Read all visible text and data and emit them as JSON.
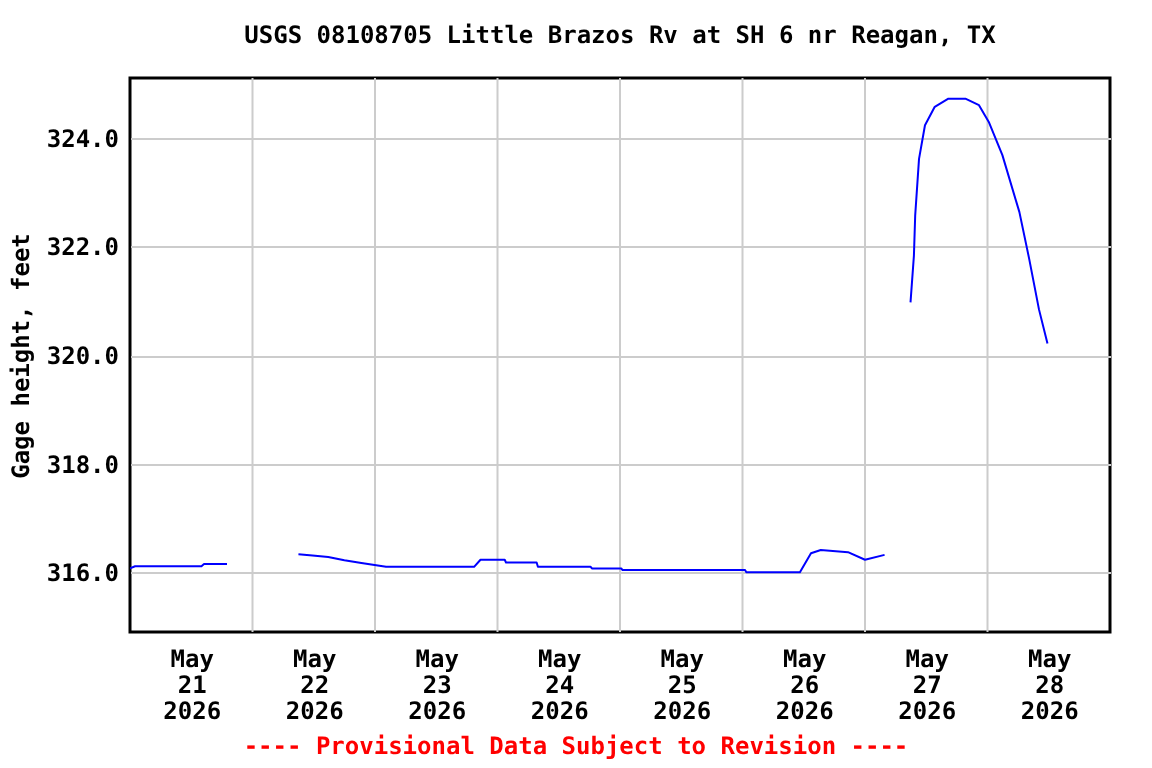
{
  "chart_data": {
    "type": "line",
    "title": "USGS 08108705 Little Brazos Rv at SH 6 nr Reagan, TX",
    "ylabel": "Gage height, feet",
    "annotations": [
      "---- Provisional Data Subject to Revision ----"
    ],
    "xlim": [
      "2026-05-21T00:00",
      "2026-05-29T00:00"
    ],
    "xticks": [
      {
        "value": "2026-05-21T12:00",
        "label": "May\n21\n2026"
      },
      {
        "value": "2026-05-22T12:00",
        "label": "May\n22\n2026"
      },
      {
        "value": "2026-05-23T12:00",
        "label": "May\n23\n2026"
      },
      {
        "value": "2026-05-24T12:00",
        "label": "May\n24\n2026"
      },
      {
        "value": "2026-05-25T12:00",
        "label": "May\n25\n2026"
      },
      {
        "value": "2026-05-26T12:00",
        "label": "May\n26\n2026"
      },
      {
        "value": "2026-05-27T12:00",
        "label": "May\n27\n2026"
      },
      {
        "value": "2026-05-28T12:00",
        "label": "May\n28\n2026"
      },
      {
        "value": "2026-05-22T00:00",
        "label": null
      },
      {
        "value": "2026-05-23T00:00",
        "label": null
      },
      {
        "value": "2026-05-24T00:00",
        "label": null
      },
      {
        "value": "2026-05-25T00:00",
        "label": null
      },
      {
        "value": "2026-05-26T00:00",
        "label": null
      },
      {
        "value": "2026-05-27T00:00",
        "label": null
      },
      {
        "value": "2026-05-28T00:00",
        "label": null
      }
    ],
    "ylim": [
      314.9,
      325.1
    ],
    "yticks": [
      {
        "value": 316,
        "label": "316.0"
      },
      {
        "value": 318,
        "label": "318.0"
      },
      {
        "value": 320,
        "label": "320.0"
      },
      {
        "value": 322,
        "label": "322.0"
      },
      {
        "value": 324,
        "label": "324.0"
      }
    ],
    "grid": true,
    "x": [
      "2026-05-21T00:00",
      "2026-05-21T01:00",
      "2026-05-21T14:00",
      "2026-05-21T14:30",
      "2026-05-21T19:00",
      "2026-05-22T02:00",
      "2026-05-22T09:00",
      "2026-05-22T11:45",
      "2026-05-22T14:50",
      "2026-05-22T18:00",
      "2026-05-22T21:20",
      "2026-05-23T02:10",
      "2026-05-23T19:25",
      "2026-05-23T20:40",
      "2026-05-24T01:25",
      "2026-05-24T01:40",
      "2026-05-24T07:40",
      "2026-05-24T07:55",
      "2026-05-24T18:15",
      "2026-05-24T18:30",
      "2026-05-25T00:15",
      "2026-05-25T00:30",
      "2026-05-26T00:30",
      "2026-05-26T00:45",
      "2026-05-26T11:15",
      "2026-05-26T13:25",
      "2026-05-26T15:20",
      "2026-05-26T20:40",
      "2026-05-27T00:00",
      "2026-05-27T03:50",
      "2026-05-27T06:00",
      "2026-05-27T08:55",
      "2026-05-27T09:35",
      "2026-05-27T09:50",
      "2026-05-27T10:35",
      "2026-05-27T11:45",
      "2026-05-27T13:40",
      "2026-05-27T16:20",
      "2026-05-27T19:40",
      "2026-05-27T22:20",
      "2026-05-28T00:15",
      "2026-05-28T02:55",
      "2026-05-28T06:15",
      "2026-05-28T08:10",
      "2026-05-28T10:05",
      "2026-05-28T11:45"
    ],
    "series": [
      {
        "color": "#0000ff",
        "values": [
          316.07,
          316.11,
          316.11,
          316.15,
          316.15,
          null,
          316.33,
          316.31,
          316.28,
          316.22,
          316.17,
          316.1,
          316.1,
          316.23,
          316.23,
          316.18,
          316.18,
          316.1,
          316.1,
          316.07,
          316.07,
          316.04,
          316.04,
          316.0,
          316.0,
          316.35,
          316.41,
          316.37,
          316.23,
          316.32,
          null,
          320.97,
          321.83,
          322.57,
          323.61,
          324.23,
          324.57,
          324.72,
          324.72,
          324.6,
          324.29,
          323.68,
          322.63,
          321.77,
          320.84,
          320.21
        ]
      }
    ]
  }
}
